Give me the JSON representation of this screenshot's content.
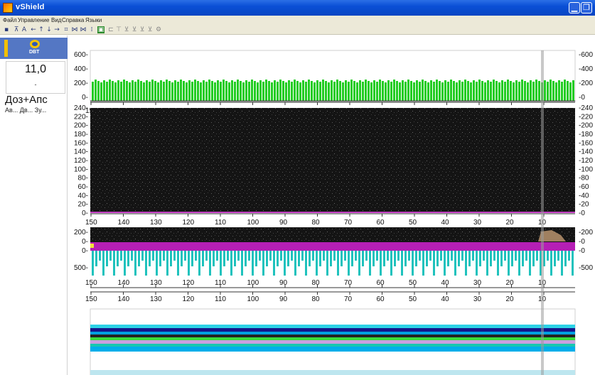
{
  "window": {
    "title": "vShield"
  },
  "menu": [
    "Файл",
    "Управление",
    "Вид",
    "Справка",
    "Языки"
  ],
  "toolbar_icons": [
    "save-icon",
    "filter-icon",
    "text-icon",
    "arrow-left-icon",
    "arrow-up-icon",
    "arrow-down-icon",
    "arrow-right-icon",
    "expand-icon",
    "zoom-icon",
    "zoom-alt-icon",
    "split-icon",
    "display-icon",
    "grid-icon",
    "grid2-icon",
    "grid3-icon",
    "grid4-icon",
    "grid5-icon",
    "grid6-icon",
    "settings-icon"
  ],
  "left_panel": {
    "logo_text": "DBT",
    "value": "11,0",
    "value_sub": "-",
    "mode": "Доз+Апс",
    "mode_options": "Ав...  Дв...  Зу..."
  },
  "x_axis": {
    "ticks": [
      "150",
      "140",
      "130",
      "120",
      "110",
      "100",
      "90",
      "80",
      "70",
      "60",
      "50",
      "40",
      "30",
      "20",
      "10"
    ]
  },
  "panel_top": {
    "y_ticks": [
      "600",
      "400",
      "200",
      "0"
    ],
    "y_ticks_right": [
      "600",
      "400",
      "200",
      "0"
    ]
  },
  "panel_mid": {
    "y_ticks": [
      "240",
      "220",
      "200",
      "180",
      "160",
      "140",
      "120",
      "100",
      "80",
      "60",
      "40",
      "20",
      "0"
    ]
  },
  "panel_low": {
    "y_ticks_a": [
      "200",
      "0"
    ],
    "y_ticks_b": [
      "0",
      "500"
    ]
  },
  "colors": {
    "green_bars": "#22cc22",
    "dark_bg": "#151515",
    "magenta_band": "#b81fb8",
    "teal_bars": "#1fc2bd",
    "cursor": "#9a9a9a"
  }
}
